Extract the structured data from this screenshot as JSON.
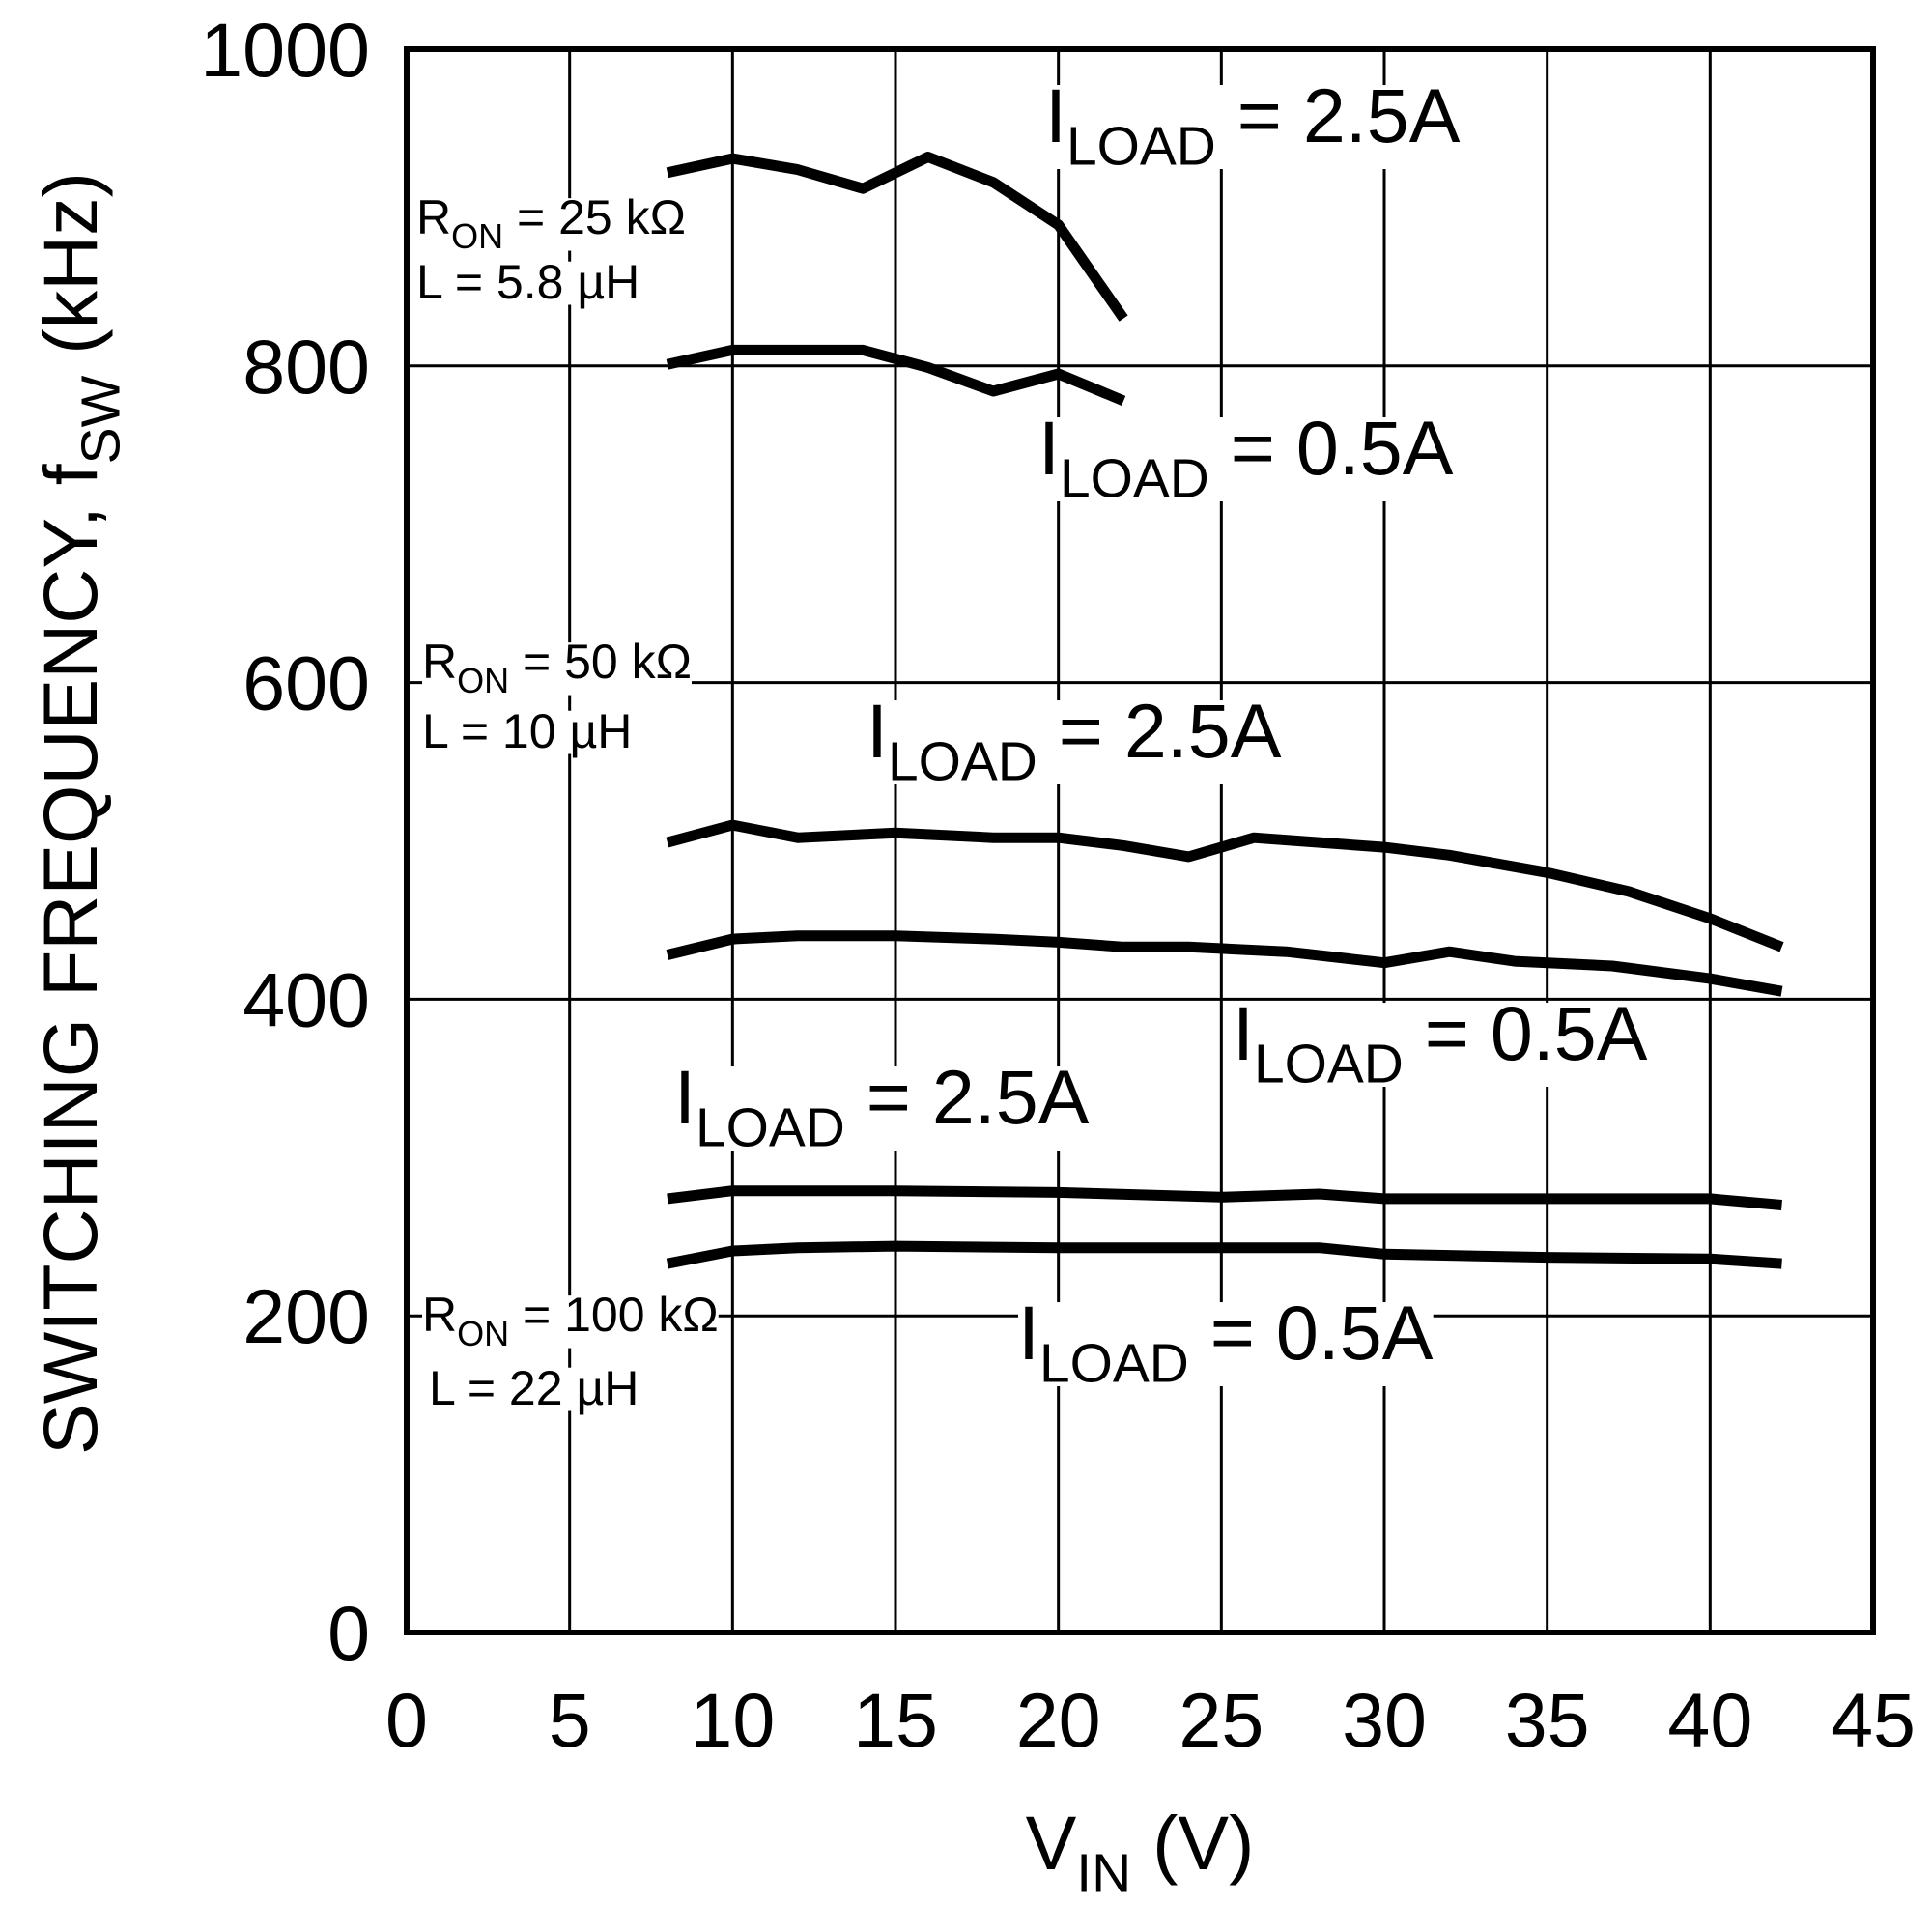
{
  "chart_data": {
    "type": "line",
    "xlabel": {
      "main": "V",
      "sub": "IN",
      "rest": " (V)"
    },
    "ylabel": {
      "main": "SWITCHING FREQUENCY, f",
      "sub": "SW",
      "rest": " (kHz)"
    },
    "xlim": [
      0,
      45
    ],
    "xticks": [
      0,
      5,
      10,
      15,
      20,
      25,
      30,
      35,
      40,
      45
    ],
    "ylim": [
      0,
      1000
    ],
    "yticks": [
      0,
      200,
      400,
      600,
      800,
      1000
    ],
    "grid": true,
    "series": [
      {
        "color": "#000000",
        "x": [
          8,
          10,
          12,
          14,
          16,
          18,
          20,
          22
        ],
        "values": [
          922,
          931,
          924,
          912,
          932,
          916,
          889,
          830
        ]
      },
      {
        "color": "#000000",
        "x": [
          8,
          10,
          14,
          16,
          18,
          20,
          22
        ],
        "values": [
          801,
          810,
          810,
          799,
          784,
          795,
          778
        ]
      },
      {
        "color": "#000000",
        "x": [
          8,
          10,
          12,
          15,
          18,
          20,
          22,
          24,
          26,
          30,
          32,
          35,
          37.5,
          40,
          42.2
        ],
        "values": [
          499,
          510,
          502,
          505,
          502,
          502,
          497,
          490,
          502,
          496,
          491,
          480,
          468,
          451,
          433
        ]
      },
      {
        "color": "#000000",
        "x": [
          8,
          10,
          12,
          15,
          18,
          20,
          22,
          24,
          27,
          30,
          32,
          34,
          37,
          40,
          42.2
        ],
        "values": [
          428,
          438,
          440,
          440,
          438,
          436,
          433,
          433,
          430,
          423,
          430,
          424,
          421,
          413,
          405
        ]
      },
      {
        "color": "#000000",
        "x": [
          8,
          10,
          15,
          20,
          25,
          28,
          30,
          35,
          40,
          42.2
        ],
        "values": [
          274,
          279,
          279,
          278,
          275,
          277,
          274,
          274,
          274,
          270
        ]
      },
      {
        "color": "#000000",
        "x": [
          8,
          10,
          12,
          15,
          20,
          28,
          30,
          35,
          40,
          42.2
        ],
        "values": [
          233,
          241,
          243,
          244,
          243,
          243,
          239,
          237,
          236,
          233
        ]
      }
    ],
    "annotations": [
      {
        "main": "I",
        "sub": "LOAD",
        "rest": " = 2.5A"
      },
      {
        "main": "I",
        "sub": "LOAD",
        "rest": " = 0.5A"
      },
      {
        "main": "R",
        "sub": "ON",
        "rest": " = 25 kΩ"
      },
      {
        "main": "L = 5.8 µH"
      },
      {
        "main": "R",
        "sub": "ON",
        "rest": " = 50 kΩ"
      },
      {
        "main": "L = 10 µH"
      },
      {
        "main": "I",
        "sub": "LOAD",
        "rest": " = 2.5A"
      },
      {
        "main": "I",
        "sub": "LOAD",
        "rest": " = 0.5A"
      },
      {
        "main": "I",
        "sub": "LOAD",
        "rest": " = 2.5A"
      },
      {
        "main": "R",
        "sub": "ON",
        "rest": " = 100 kΩ"
      },
      {
        "main": "L = 22 µH"
      },
      {
        "main": "I",
        "sub": "LOAD",
        "rest": " = 0.5A"
      }
    ]
  }
}
